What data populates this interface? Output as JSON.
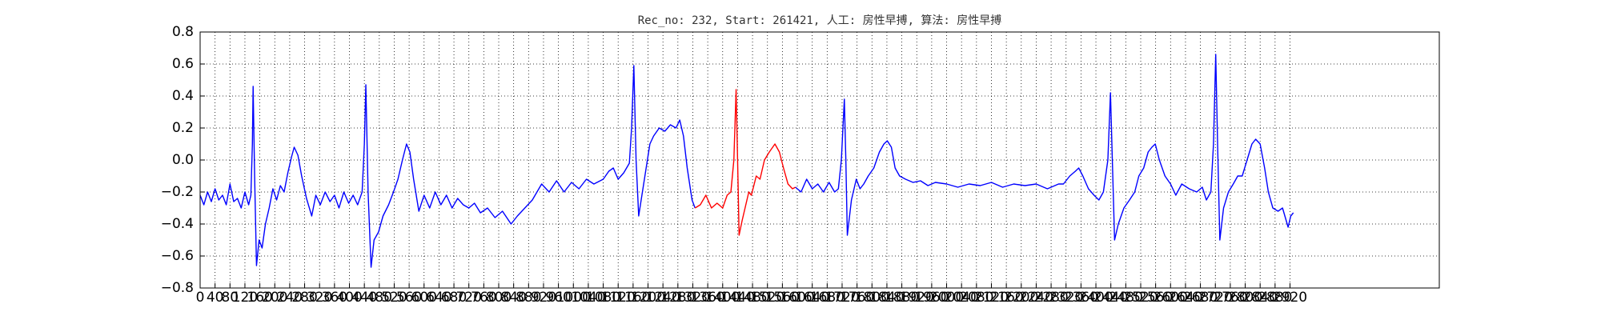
{
  "chart_data": {
    "type": "line",
    "title": "Rec_no: 232, Start: 261421, 人工: 房性早搏, 算法: 房性早搏",
    "xlim": [
      0,
      3320
    ],
    "xticks": [
      0,
      40,
      80,
      120,
      160,
      200,
      240,
      280,
      320,
      360,
      400,
      440,
      480,
      520,
      560,
      600,
      640,
      680,
      720,
      760,
      800,
      840,
      880,
      920,
      960,
      1000,
      1040,
      1080,
      1120,
      1160,
      1200,
      1240,
      1280,
      1320,
      1360,
      1400,
      1440,
      1480,
      1520,
      1560,
      1600,
      1640,
      1680,
      1720,
      1760,
      1800,
      1840,
      1880,
      1920,
      1960,
      2000,
      2040,
      2080,
      2120,
      2160,
      2200,
      2240,
      2280,
      2320,
      2360,
      2400,
      2440,
      2480,
      2520,
      2560,
      2600,
      2640,
      2680,
      2720,
      2760,
      2800,
      2840,
      2880,
      2920
    ],
    "ylim": [
      -0.8,
      0.8
    ],
    "yticks": [
      {
        "value": -0.8,
        "label": "−0.8"
      },
      {
        "value": -0.6,
        "label": "−0.6"
      },
      {
        "value": -0.4,
        "label": "−0.4"
      },
      {
        "value": -0.2,
        "label": "−0.2"
      },
      {
        "value": 0,
        "label": "0.0"
      },
      0.2,
      0.4,
      0.6,
      0.8
    ],
    "grid": true,
    "series": [
      {
        "color": "#0000ff",
        "x": [
          0,
          10,
          20,
          30,
          40,
          50,
          60,
          70,
          80,
          90,
          100,
          110,
          120,
          130,
          136,
          140,
          142,
          146,
          151,
          158,
          166,
          175,
          185,
          195,
          205,
          215,
          225,
          235,
          245,
          252,
          262,
          272,
          285,
          299,
          310,
          322,
          335,
          348,
          360,
          372,
          385,
          398,
          410,
          422,
          434,
          440,
          444,
          450,
          458,
          466,
          478,
          490,
          505,
          518,
          530,
          542,
          553,
          562,
          572,
          586,
          600,
          615,
          630,
          645,
          660,
          675,
          690,
          705,
          720,
          735,
          751,
          770,
          790,
          810,
          833,
          850,
          870,
          890,
          915,
          935,
          955,
          975,
          995,
          1015,
          1035,
          1055,
          1080,
          1095,
          1107,
          1120,
          1135,
          1150,
          1156,
          1162,
          1168,
          1175,
          1185,
          1195,
          1205,
          1215,
          1230,
          1245,
          1260,
          1275,
          1285,
          1295,
          1305,
          1318,
          1326
        ],
        "values": [
          -0.22,
          -0.28,
          -0.2,
          -0.26,
          -0.18,
          -0.25,
          -0.22,
          -0.28,
          -0.15,
          -0.26,
          -0.24,
          -0.3,
          -0.2,
          -0.28,
          -0.22,
          0.1,
          0.46,
          -0.1,
          -0.66,
          -0.5,
          -0.55,
          -0.4,
          -0.3,
          -0.18,
          -0.25,
          -0.16,
          -0.2,
          -0.08,
          0.02,
          0.08,
          0.03,
          -0.1,
          -0.24,
          -0.35,
          -0.22,
          -0.28,
          -0.2,
          -0.26,
          -0.22,
          -0.3,
          -0.2,
          -0.27,
          -0.22,
          -0.28,
          -0.2,
          0.1,
          0.47,
          -0.2,
          -0.67,
          -0.5,
          -0.45,
          -0.35,
          -0.28,
          -0.2,
          -0.12,
          0.0,
          0.1,
          0.05,
          -0.12,
          -0.32,
          -0.22,
          -0.3,
          -0.2,
          -0.28,
          -0.22,
          -0.3,
          -0.24,
          -0.28,
          -0.3,
          -0.27,
          -0.33,
          -0.3,
          -0.36,
          -0.32,
          -0.4,
          -0.35,
          -0.3,
          -0.25,
          -0.15,
          -0.2,
          -0.13,
          -0.2,
          -0.14,
          -0.18,
          -0.12,
          -0.15,
          -0.12,
          -0.07,
          -0.05,
          -0.12,
          -0.08,
          -0.02,
          0.2,
          0.59,
          0.0,
          -0.35,
          -0.2,
          -0.05,
          0.1,
          0.15,
          0.2,
          0.18,
          0.22,
          0.2,
          0.25,
          0.15,
          -0.05,
          -0.25,
          -0.3
        ]
      },
      {
        "color": "#ff0000",
        "x": [
          1326,
          1340,
          1355,
          1370,
          1385,
          1400,
          1412,
          1422,
          1430,
          1436,
          1440,
          1444,
          1452,
          1460,
          1470,
          1477,
          1490,
          1500,
          1512,
          1525,
          1540,
          1552,
          1563,
          1575,
          1587,
          1595
        ],
        "values": [
          -0.3,
          -0.28,
          -0.22,
          -0.3,
          -0.27,
          -0.3,
          -0.22,
          -0.2,
          0.0,
          0.44,
          0.0,
          -0.47,
          -0.38,
          -0.3,
          -0.2,
          -0.22,
          -0.1,
          -0.12,
          0.0,
          0.05,
          0.1,
          0.05,
          -0.05,
          -0.15,
          -0.18,
          -0.17
        ]
      },
      {
        "color": "#0000ff",
        "x": [
          1595,
          1610,
          1625,
          1640,
          1655,
          1670,
          1685,
          1700,
          1710,
          1718,
          1726,
          1730,
          1734,
          1745,
          1758,
          1768,
          1778,
          1790,
          1805,
          1820,
          1832,
          1841,
          1852,
          1862,
          1874,
          1890,
          1910,
          1930,
          1950,
          1970,
          2000,
          2030,
          2060,
          2090,
          2120,
          2150,
          2180,
          2210,
          2240,
          2270,
          2300,
          2313,
          2330,
          2345,
          2354,
          2365,
          2380,
          2395,
          2408,
          2420,
          2432,
          2439,
          2444,
          2450,
          2460,
          2475,
          2490,
          2504,
          2515,
          2528,
          2540,
          2550,
          2559,
          2570,
          2585,
          2600,
          2614,
          2630,
          2650,
          2670,
          2685,
          2696,
          2708,
          2715,
          2721,
          2726,
          2732,
          2742,
          2755,
          2768,
          2780,
          2792,
          2805,
          2818,
          2828,
          2840,
          2852,
          2862,
          2874,
          2888,
          2900,
          2915,
          2922,
          2929
        ],
        "values": [
          -0.17,
          -0.2,
          -0.12,
          -0.18,
          -0.15,
          -0.2,
          -0.14,
          -0.2,
          -0.18,
          0.0,
          0.38,
          0.0,
          -0.47,
          -0.25,
          -0.12,
          -0.18,
          -0.15,
          -0.1,
          -0.05,
          0.05,
          0.1,
          0.12,
          0.08,
          -0.05,
          -0.1,
          -0.12,
          -0.14,
          -0.13,
          -0.16,
          -0.14,
          -0.15,
          -0.17,
          -0.15,
          -0.16,
          -0.14,
          -0.17,
          -0.15,
          -0.16,
          -0.15,
          -0.18,
          -0.15,
          -0.15,
          -0.1,
          -0.07,
          -0.05,
          -0.1,
          -0.18,
          -0.22,
          -0.25,
          -0.2,
          0.0,
          0.42,
          0.0,
          -0.5,
          -0.4,
          -0.3,
          -0.25,
          -0.2,
          -0.1,
          -0.05,
          0.05,
          0.08,
          0.1,
          0.0,
          -0.1,
          -0.15,
          -0.22,
          -0.15,
          -0.18,
          -0.2,
          -0.17,
          -0.25,
          -0.2,
          0.1,
          0.66,
          0.1,
          -0.5,
          -0.3,
          -0.2,
          -0.15,
          -0.1,
          -0.1,
          0.0,
          0.1,
          0.13,
          0.1,
          -0.05,
          -0.2,
          -0.3,
          -0.32,
          -0.3,
          -0.42,
          -0.35,
          -0.33
        ]
      }
    ]
  }
}
